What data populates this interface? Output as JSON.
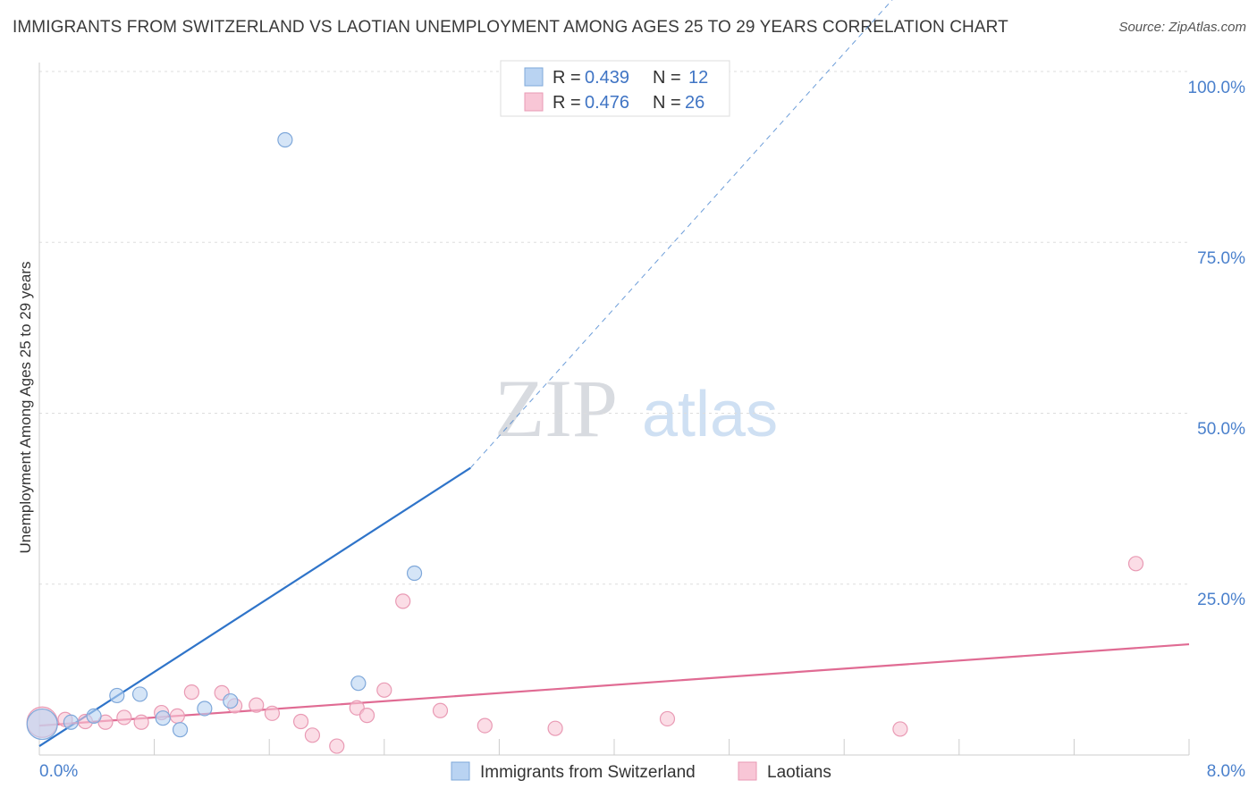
{
  "title": "IMMIGRANTS FROM SWITZERLAND VS LAOTIAN UNEMPLOYMENT AMONG AGES 25 TO 29 YEARS CORRELATION CHART",
  "source": "Source: ZipAtlas.com",
  "watermark": {
    "zip": "ZIP",
    "atlas": "atlas"
  },
  "colors": {
    "blue_fill": "#b9d3f2",
    "blue_stroke": "#7fa8da",
    "blue_line": "#2f74c9",
    "pink_fill": "#f8c6d6",
    "pink_stroke": "#e99ab4",
    "pink_line": "#e06b93",
    "grid": "#dddddd",
    "axis_text": "#4a80cc"
  },
  "chart_data": {
    "type": "scatter",
    "xlabel": "",
    "ylabel": "Unemployment Among Ages 25 to 29 years",
    "xlim": [
      0,
      8
    ],
    "ylim": [
      0,
      100
    ],
    "x_tick_labels": [
      "0.0%",
      "8.0%"
    ],
    "y_ticks": [
      25,
      50,
      75,
      100
    ],
    "y_tick_labels": [
      "25.0%",
      "50.0%",
      "75.0%",
      "100.0%"
    ],
    "legend": [
      {
        "name": "Immigrants from Switzerland",
        "r_label": "R =",
        "r": "0.439",
        "n_label": "N =",
        "n": "12"
      },
      {
        "name": "Laotians",
        "r_label": "R =",
        "r": "0.476",
        "n_label": "N =",
        "n": "26"
      }
    ],
    "series": [
      {
        "name": "Immigrants from Switzerland",
        "color": "blue",
        "points": [
          {
            "x": 0.02,
            "y": 4.5,
            "big": true
          },
          {
            "x": 0.22,
            "y": 4.8
          },
          {
            "x": 0.38,
            "y": 5.7
          },
          {
            "x": 0.54,
            "y": 8.7
          },
          {
            "x": 0.7,
            "y": 8.9
          },
          {
            "x": 0.86,
            "y": 5.4
          },
          {
            "x": 0.98,
            "y": 3.7
          },
          {
            "x": 1.15,
            "y": 6.8
          },
          {
            "x": 1.33,
            "y": 7.9
          },
          {
            "x": 1.71,
            "y": 90.0
          },
          {
            "x": 2.22,
            "y": 10.5
          },
          {
            "x": 2.61,
            "y": 26.6
          }
        ],
        "trend": {
          "x1": 0.0,
          "y1": 1.3,
          "x2": 3.0,
          "y2": 42.0,
          "dash_to_x": 7.2,
          "dash_to_y": 140.0
        }
      },
      {
        "name": "Laotians",
        "color": "pink",
        "points": [
          {
            "x": 0.02,
            "y": 4.8,
            "big": true
          },
          {
            "x": 0.18,
            "y": 5.2
          },
          {
            "x": 0.32,
            "y": 4.9
          },
          {
            "x": 0.46,
            "y": 4.8
          },
          {
            "x": 0.59,
            "y": 5.5
          },
          {
            "x": 0.71,
            "y": 4.8
          },
          {
            "x": 0.85,
            "y": 6.2
          },
          {
            "x": 0.96,
            "y": 5.7
          },
          {
            "x": 1.06,
            "y": 9.2
          },
          {
            "x": 1.27,
            "y": 9.1
          },
          {
            "x": 1.36,
            "y": 7.2
          },
          {
            "x": 1.51,
            "y": 7.3
          },
          {
            "x": 1.62,
            "y": 6.1
          },
          {
            "x": 1.82,
            "y": 4.9
          },
          {
            "x": 1.9,
            "y": 2.9
          },
          {
            "x": 2.07,
            "y": 1.3
          },
          {
            "x": 2.21,
            "y": 6.9
          },
          {
            "x": 2.28,
            "y": 5.8
          },
          {
            "x": 2.4,
            "y": 9.5
          },
          {
            "x": 2.53,
            "y": 22.5
          },
          {
            "x": 2.79,
            "y": 6.5
          },
          {
            "x": 3.1,
            "y": 4.3
          },
          {
            "x": 3.59,
            "y": 3.9
          },
          {
            "x": 4.37,
            "y": 5.3
          },
          {
            "x": 5.99,
            "y": 3.8
          },
          {
            "x": 7.63,
            "y": 28.0
          }
        ],
        "trend": {
          "x1": 0.0,
          "y1": 4.3,
          "x2": 8.0,
          "y2": 16.2
        }
      }
    ]
  }
}
